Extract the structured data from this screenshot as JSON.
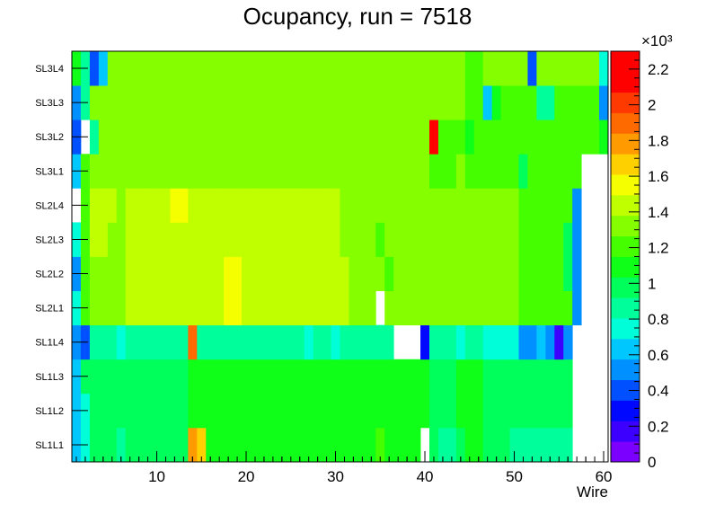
{
  "chart_data": {
    "type": "heatmap",
    "title": "Ocupancy, run = 7518",
    "xlabel": "Wire",
    "ylabel": "",
    "xlim": [
      0.5,
      60.5
    ],
    "x_ticks": [
      "10",
      "20",
      "30",
      "40",
      "50",
      "60"
    ],
    "x_tick_values": [
      10,
      20,
      30,
      40,
      50,
      60
    ],
    "y_categories": [
      "SL1L1",
      "SL1L2",
      "SL1L3",
      "SL1L4",
      "SL2L1",
      "SL2L2",
      "SL2L3",
      "SL2L4",
      "SL3L1",
      "SL3L2",
      "SL3L3",
      "SL3L4"
    ],
    "z_range": [
      0,
      2300
    ],
    "colorbar_exponent": "×10³",
    "colorbar_ticks": [
      "0",
      "0.2",
      "0.4",
      "0.6",
      "0.8",
      "1",
      "1.2",
      "1.4",
      "1.6",
      "1.8",
      "2",
      "2.2"
    ],
    "colorbar_tick_values": [
      0,
      200,
      400,
      600,
      800,
      1000,
      1200,
      1400,
      1600,
      1800,
      2000,
      2200
    ],
    "colorbar_colors": [
      "#7b00ff",
      "#3b00ff",
      "#0008ff",
      "#0050ff",
      "#0090ff",
      "#00c8ff",
      "#00ffd8",
      "#00ff9a",
      "#00ff5a",
      "#10ff18",
      "#45ff00",
      "#85ff00",
      "#c0ff00",
      "#f5ff00",
      "#ffd000",
      "#ff9a00",
      "#ff6a00",
      "#ff3a00",
      "#ff0000",
      "#ff0000"
    ],
    "rows": {
      "SL1L1": [
        650,
        780,
        970,
        970,
        960,
        880,
        1010,
        1010,
        1010,
        1010,
        1010,
        1010,
        1010,
        1800,
        1650,
        1060,
        1060,
        1060,
        1060,
        1060,
        1060,
        1060,
        1060,
        1060,
        1060,
        1060,
        1060,
        1060,
        1060,
        1060,
        1060,
        1100,
        1100,
        1100,
        1150,
        1100,
        1060,
        1060,
        1060,
        0,
        960,
        880,
        880,
        960,
        1060,
        1060,
        960,
        960,
        960,
        880,
        880,
        880,
        880,
        880,
        880,
        880,
        0,
        0,
        0,
        0
      ],
      "SL1L2": [
        650,
        780,
        960,
        960,
        960,
        960,
        960,
        960,
        960,
        960,
        960,
        960,
        960,
        1060,
        1060,
        1060,
        1100,
        1100,
        1100,
        1060,
        1100,
        1100,
        1100,
        1100,
        1100,
        1060,
        1060,
        1060,
        1060,
        1060,
        1060,
        1100,
        1100,
        1100,
        1100,
        1100,
        1060,
        1060,
        1060,
        1060,
        960,
        960,
        960,
        1060,
        1060,
        1100,
        960,
        960,
        960,
        960,
        960,
        960,
        960,
        960,
        960,
        960,
        0,
        0,
        0,
        0
      ],
      "SL1L3": [
        650,
        960,
        960,
        960,
        960,
        960,
        960,
        960,
        960,
        960,
        960,
        960,
        960,
        1100,
        1060,
        1060,
        1100,
        1100,
        1100,
        1060,
        1100,
        1100,
        1100,
        1100,
        1100,
        1060,
        1060,
        1060,
        1060,
        1060,
        1060,
        1060,
        1060,
        1060,
        1060,
        1060,
        1060,
        1060,
        1060,
        1060,
        960,
        960,
        960,
        1060,
        1060,
        1060,
        960,
        960,
        960,
        960,
        960,
        960,
        960,
        960,
        960,
        960,
        0,
        0,
        0,
        0
      ],
      "SL1L4": [
        560,
        450,
        830,
        830,
        830,
        770,
        880,
        880,
        880,
        880,
        880,
        880,
        880,
        1850,
        830,
        830,
        830,
        830,
        830,
        830,
        830,
        830,
        830,
        830,
        830,
        830,
        770,
        830,
        830,
        770,
        880,
        880,
        880,
        880,
        880,
        880,
        0,
        0,
        0,
        260,
        880,
        830,
        830,
        770,
        830,
        830,
        770,
        770,
        770,
        770,
        560,
        560,
        660,
        560,
        180,
        520,
        0,
        0,
        0,
        0
      ],
      "SL2L1": [
        760,
        1170,
        1370,
        1370,
        1370,
        1370,
        1470,
        1470,
        1470,
        1470,
        1470,
        1470,
        1470,
        1470,
        1470,
        1470,
        1470,
        1500,
        1500,
        1470,
        1470,
        1470,
        1470,
        1470,
        1470,
        1470,
        1470,
        1470,
        1470,
        1470,
        1470,
        1370,
        1370,
        1370,
        0,
        1370,
        1370,
        1370,
        1370,
        1370,
        1370,
        1370,
        1370,
        1370,
        1370,
        1370,
        1370,
        1370,
        1370,
        1370,
        1170,
        1170,
        1170,
        1170,
        1170,
        1170,
        560,
        0,
        0,
        0
      ],
      "SL2L2": [
        560,
        1170,
        1370,
        1370,
        1370,
        1370,
        1470,
        1470,
        1470,
        1470,
        1470,
        1470,
        1470,
        1470,
        1470,
        1470,
        1470,
        1500,
        1500,
        1470,
        1470,
        1470,
        1470,
        1470,
        1470,
        1470,
        1470,
        1470,
        1470,
        1470,
        1470,
        1370,
        1370,
        1370,
        1370,
        1170,
        1370,
        1370,
        1370,
        1370,
        1370,
        1370,
        1370,
        1370,
        1370,
        1370,
        1370,
        1370,
        1370,
        1370,
        1170,
        1170,
        1170,
        1170,
        1170,
        960,
        560,
        0,
        0,
        0
      ],
      "SL2L3": [
        760,
        1170,
        1470,
        1470,
        1370,
        1370,
        1470,
        1470,
        1470,
        1470,
        1470,
        1470,
        1470,
        1470,
        1470,
        1470,
        1470,
        1470,
        1470,
        1470,
        1470,
        1470,
        1470,
        1470,
        1470,
        1470,
        1470,
        1470,
        1470,
        1470,
        1370,
        1370,
        1370,
        1370,
        1170,
        1370,
        1370,
        1370,
        1370,
        1370,
        1370,
        1370,
        1370,
        1370,
        1370,
        1370,
        1370,
        1370,
        1370,
        1370,
        1170,
        1170,
        1170,
        1170,
        1170,
        960,
        560,
        0,
        0,
        0
      ],
      "SL2L4": [
        0,
        1170,
        1470,
        1470,
        1470,
        1370,
        1470,
        1470,
        1470,
        1470,
        1470,
        1500,
        1500,
        1470,
        1470,
        1470,
        1470,
        1470,
        1470,
        1470,
        1470,
        1470,
        1470,
        1470,
        1470,
        1470,
        1470,
        1470,
        1470,
        1470,
        1370,
        1370,
        1370,
        1370,
        1370,
        1370,
        1370,
        1370,
        1370,
        1370,
        1370,
        1370,
        1370,
        1370,
        1370,
        1370,
        1370,
        1370,
        1370,
        1370,
        1170,
        1170,
        1170,
        1170,
        1170,
        1170,
        560,
        0,
        0,
        0
      ],
      "SL3L1": [
        660,
        1170,
        1270,
        1270,
        1270,
        1270,
        1270,
        1270,
        1270,
        1270,
        1270,
        1270,
        1270,
        1270,
        1270,
        1270,
        1270,
        1270,
        1270,
        1270,
        1270,
        1270,
        1270,
        1270,
        1270,
        1270,
        1270,
        1270,
        1270,
        1270,
        1270,
        1270,
        1270,
        1270,
        1270,
        1270,
        1270,
        1270,
        1270,
        1270,
        1170,
        1170,
        1170,
        1270,
        1170,
        1170,
        1170,
        1170,
        1170,
        1170,
        960,
        1170,
        1170,
        1170,
        1170,
        1170,
        1170,
        0,
        0,
        0
      ],
      "SL3L2": [
        360,
        0,
        860,
        1270,
        1270,
        1270,
        1270,
        1270,
        1270,
        1270,
        1270,
        1270,
        1270,
        1270,
        1270,
        1270,
        1270,
        1270,
        1270,
        1270,
        1270,
        1270,
        1270,
        1270,
        1270,
        1270,
        1270,
        1270,
        1270,
        1270,
        1270,
        1270,
        1270,
        1270,
        1270,
        1270,
        1270,
        1270,
        1270,
        1270,
        2300,
        1170,
        1170,
        1170,
        1060,
        1170,
        1170,
        1170,
        1170,
        1170,
        1170,
        1170,
        1170,
        1170,
        1170,
        1170,
        1170,
        1170,
        1170,
        1060
      ],
      "SL3L3": [
        560,
        860,
        1270,
        1270,
        1270,
        1270,
        1270,
        1270,
        1270,
        1270,
        1270,
        1270,
        1270,
        1270,
        1270,
        1270,
        1270,
        1270,
        1270,
        1270,
        1270,
        1270,
        1270,
        1270,
        1270,
        1270,
        1270,
        1270,
        1270,
        1270,
        1270,
        1270,
        1270,
        1270,
        1270,
        1270,
        1270,
        1270,
        1270,
        1270,
        1270,
        1270,
        1270,
        1270,
        1170,
        1170,
        660,
        1060,
        1170,
        1170,
        1170,
        1170,
        860,
        860,
        1170,
        1170,
        1170,
        1170,
        1170,
        560
      ],
      "SL3L4": [
        1060,
        860,
        360,
        660,
        1270,
        1270,
        1270,
        1270,
        1270,
        1270,
        1270,
        1270,
        1270,
        1270,
        1270,
        1270,
        1270,
        1270,
        1270,
        1270,
        1270,
        1270,
        1270,
        1270,
        1270,
        1270,
        1270,
        1270,
        1270,
        1270,
        1270,
        1270,
        1270,
        1270,
        1270,
        1270,
        1270,
        1270,
        1270,
        1270,
        1270,
        1270,
        1270,
        1270,
        1170,
        1170,
        1270,
        1270,
        1270,
        1270,
        1270,
        360,
        1270,
        1270,
        1270,
        1270,
        1270,
        1270,
        1270,
        760
      ]
    }
  }
}
